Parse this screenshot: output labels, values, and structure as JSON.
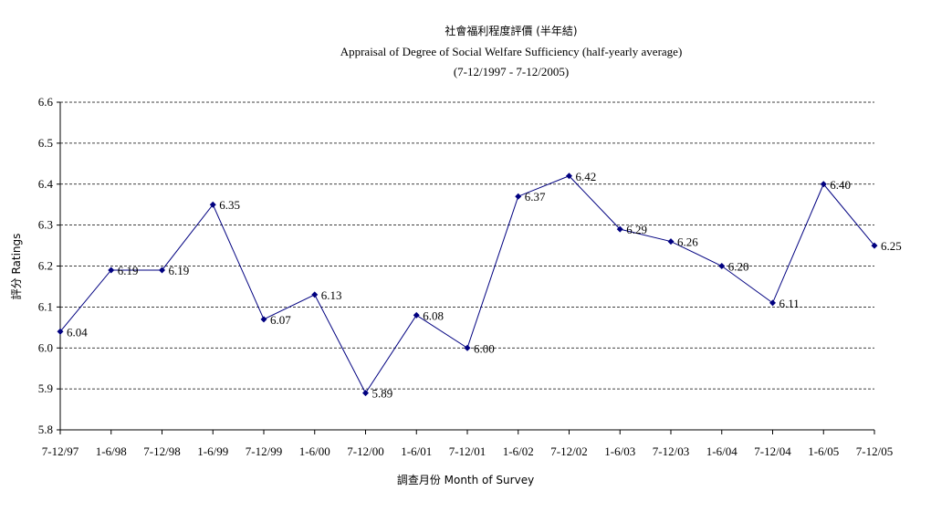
{
  "chart_data": {
    "type": "line",
    "title": "社會福利程度評價 (半年結)",
    "subtitle": "Appraisal of Degree of Social Welfare Sufficiency (half-yearly average)",
    "subtitle2": "(7-12/1997 - 7-12/2005)",
    "xlabel": "調查月份 Month of Survey",
    "ylabel": "評分 Ratings",
    "ylim": [
      5.8,
      6.6
    ],
    "y_ticks": [
      "5.8",
      "5.9",
      "6.0",
      "6.1",
      "6.2",
      "6.3",
      "6.4",
      "6.5",
      "6.6"
    ],
    "grid": true,
    "categories": [
      "7-12/97",
      "1-6/98",
      "7-12/98",
      "1-6/99",
      "7-12/99",
      "1-6/00",
      "7-12/00",
      "1-6/01",
      "7-12/01",
      "1-6/02",
      "7-12/02",
      "1-6/03",
      "7-12/03",
      "1-6/04",
      "7-12/04",
      "1-6/05",
      "7-12/05"
    ],
    "series": [
      {
        "values": [
          6.04,
          6.19,
          6.19,
          6.35,
          6.07,
          6.13,
          5.89,
          6.08,
          6.0,
          6.37,
          6.42,
          6.29,
          6.26,
          6.2,
          6.11,
          6.4,
          6.25
        ],
        "labels": [
          "6.04",
          "6.19",
          "6.19",
          "6.35",
          "6.07",
          "6.13",
          "5.89",
          "6.08",
          "6.00",
          "6.37",
          "6.42",
          "6.29",
          "6.26",
          "6.20",
          "6.11",
          "6.40",
          "6.25"
        ],
        "color": "#000080"
      }
    ]
  }
}
